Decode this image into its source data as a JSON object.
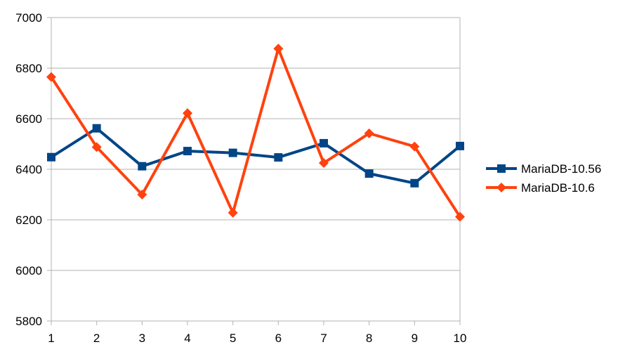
{
  "chart_data": {
    "type": "line",
    "title": "",
    "xlabel": "",
    "ylabel": "",
    "x": [
      1,
      2,
      3,
      4,
      5,
      6,
      7,
      8,
      9,
      10
    ],
    "x_tick_labels": [
      "1",
      "2",
      "3",
      "4",
      "5",
      "6",
      "7",
      "8",
      "9",
      "10"
    ],
    "ylim": [
      5800,
      7000
    ],
    "y_ticks": [
      5800,
      6000,
      6200,
      6400,
      6600,
      6800,
      7000
    ],
    "y_tick_labels": [
      "5800",
      "6000",
      "6200",
      "6400",
      "6600",
      "6800",
      "7000"
    ],
    "grid": true,
    "legend_position": "right",
    "series": [
      {
        "name": "MariaDB-10.56",
        "color": "#004586",
        "marker": "square",
        "values": [
          6448,
          6562,
          6412,
          6472,
          6465,
          6447,
          6503,
          6383,
          6345,
          6492
        ]
      },
      {
        "name": "MariaDB-10.6",
        "color": "#ff420e",
        "marker": "diamond",
        "values": [
          6765,
          6488,
          6300,
          6622,
          6228,
          6877,
          6425,
          6542,
          6490,
          6212
        ]
      }
    ]
  }
}
